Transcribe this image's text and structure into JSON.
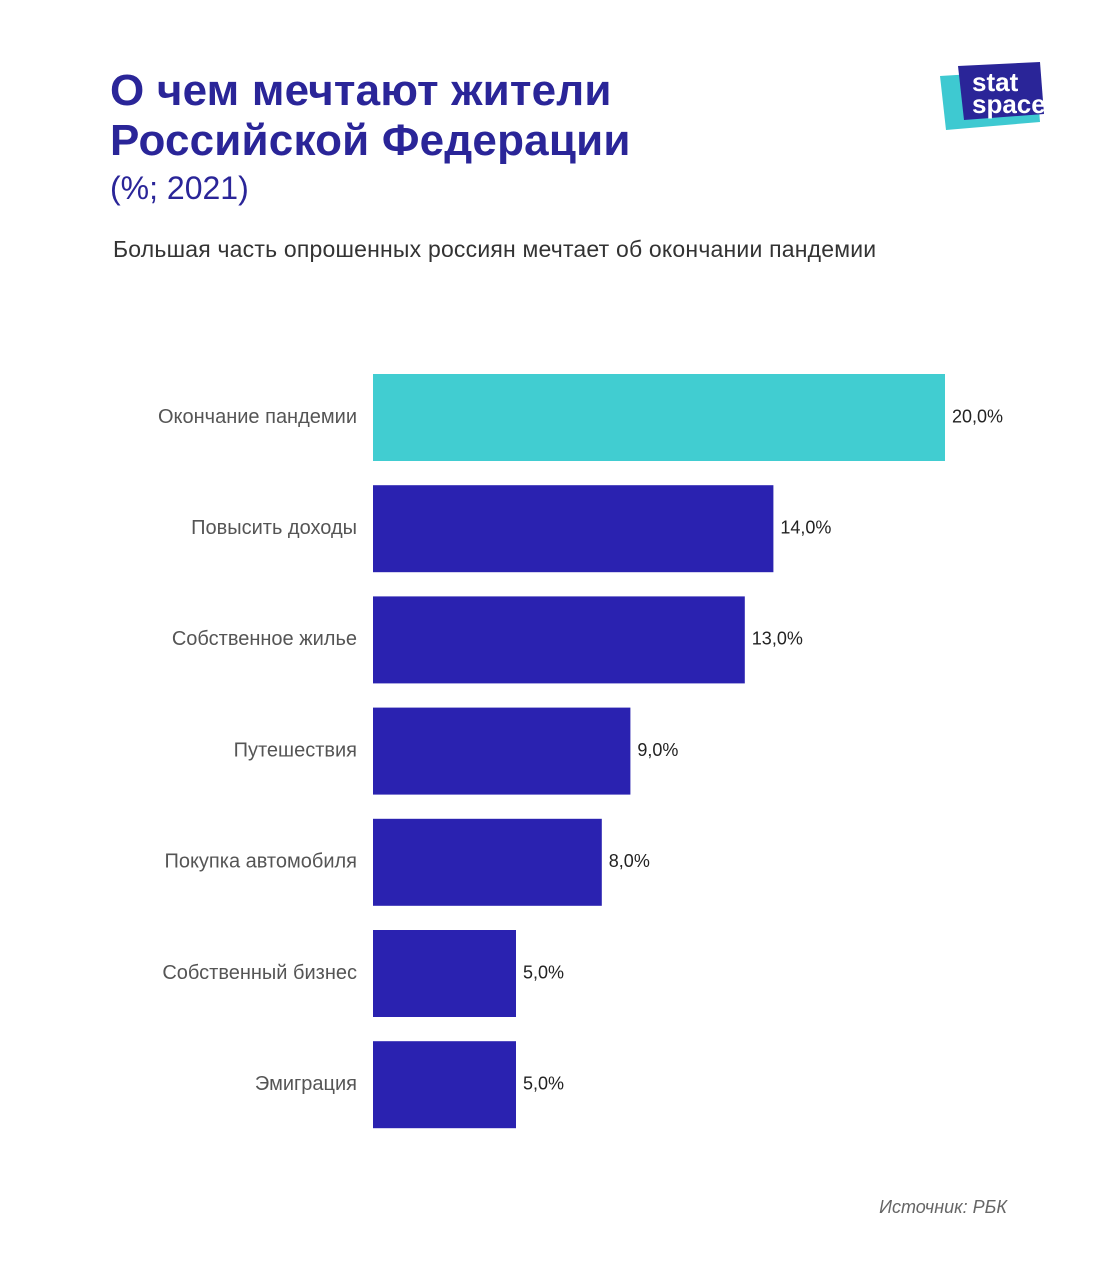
{
  "header": {
    "title_line1": "О чем мечтают жители",
    "title_line2": "Российской Федерации",
    "unit_note": "(%; 2021)",
    "subtitle": "Большая часть опрошенных россиян мечтает об окончании пандемии"
  },
  "logo": {
    "line1": "stat",
    "line2": "space",
    "colors": {
      "back": "#3ec9d1",
      "front": "#2a2598"
    }
  },
  "footer": {
    "source": "Источник: РБК"
  },
  "colors": {
    "highlight": "#41cdd1",
    "bar": "#2a22b0",
    "label": "#555555",
    "value_label": "#222222"
  },
  "chart_data": {
    "type": "bar",
    "orientation": "horizontal",
    "categories": [
      "Окончание пандемии",
      "Повысить доходы",
      "Собственное жилье",
      "Путешествия",
      "Покупка автомобиля",
      "Собственный бизнес",
      "Эмиграция"
    ],
    "values": [
      20.0,
      14.0,
      13.0,
      9.0,
      8.0,
      5.0,
      5.0
    ],
    "value_labels": [
      "20,0%",
      "14,0%",
      "13,0%",
      "9,0%",
      "8,0%",
      "5,0%",
      "5,0%"
    ],
    "highlighted_index": 0,
    "xlim": [
      0,
      20
    ],
    "grid": false,
    "legend": "none"
  }
}
